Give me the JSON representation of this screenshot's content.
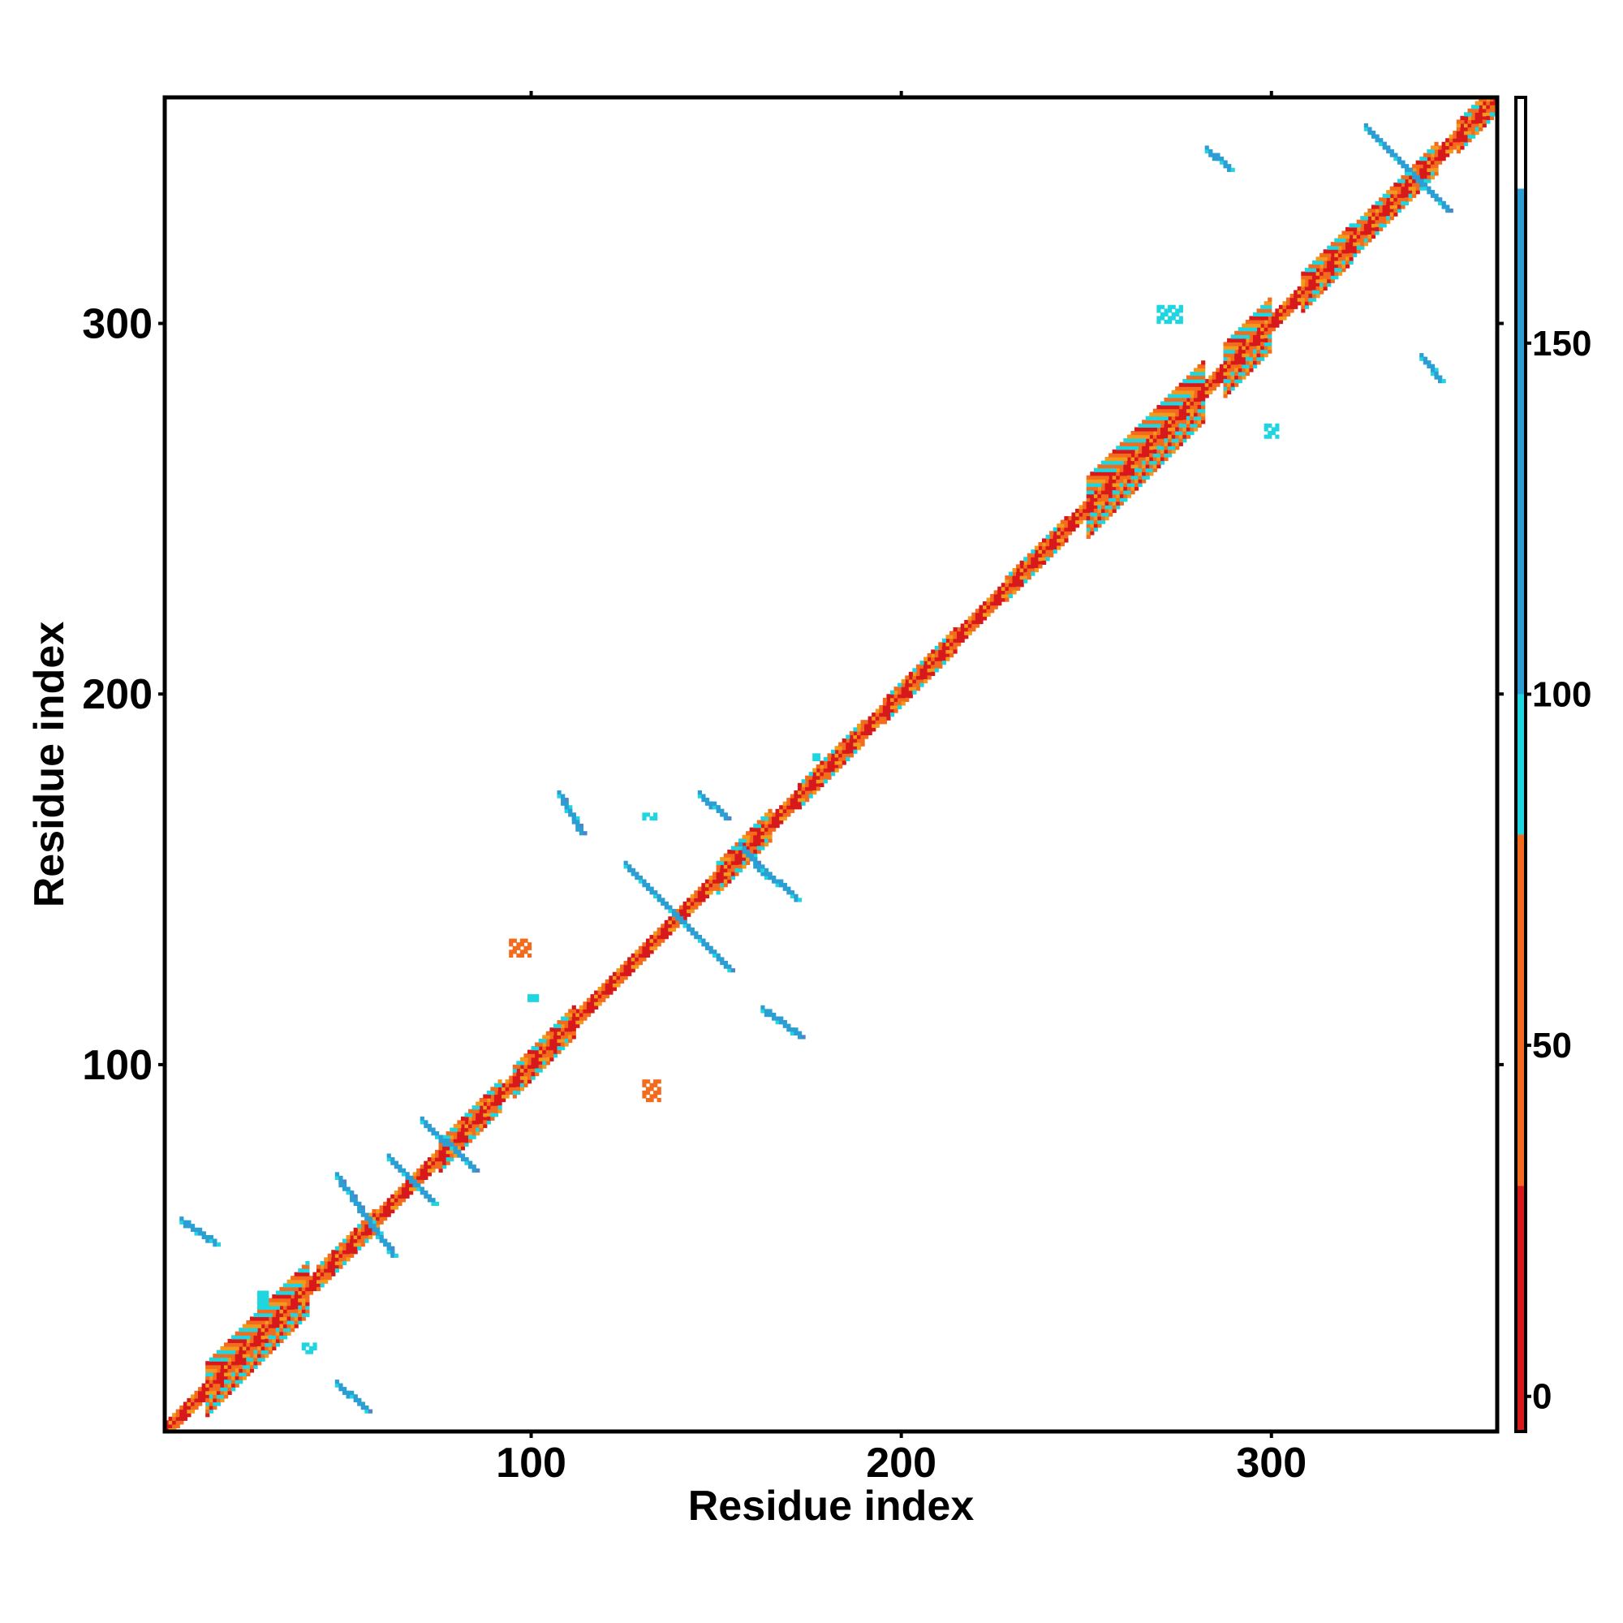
{
  "chart_data": {
    "type": "heatmap",
    "title": "",
    "xlabel": "Residue index",
    "ylabel": "Residue index",
    "xlim": [
      1,
      361
    ],
    "ylim": [
      1,
      361
    ],
    "xticks": [
      100,
      200,
      300
    ],
    "yticks": [
      100,
      200,
      300
    ],
    "grid": false,
    "colorbar": {
      "placement": "right",
      "range": [
        -5,
        185
      ],
      "ticks": [
        0,
        50,
        100,
        150
      ],
      "bands": [
        {
          "from": -5,
          "to": 30,
          "color": "#d7191c"
        },
        {
          "from": 30,
          "to": 80,
          "color": "#f36b1c"
        },
        {
          "from": 80,
          "to": 100,
          "color": "#1fd6e0"
        },
        {
          "from": 100,
          "to": 172,
          "color": "#2b9fd4"
        },
        {
          "from": 172,
          "to": 185,
          "color": "#ffffff"
        }
      ]
    },
    "cell_colors": {
      "red": "#d7191c",
      "orange": "#f36b1c",
      "amber": "#f39a1c",
      "cyan": "#1fd6e0",
      "blue": "#2b9fd4",
      "steel": "#4a86c8"
    },
    "diagonal": {
      "from": 1,
      "to": 361,
      "width": 2
    },
    "helix_bands": [
      {
        "from": 12,
        "to": 40,
        "width": 7
      },
      {
        "from": 42,
        "to": 58,
        "width": 3
      },
      {
        "from": 75,
        "to": 92,
        "width": 4
      },
      {
        "from": 95,
        "to": 112,
        "width": 4
      },
      {
        "from": 150,
        "to": 165,
        "width": 4
      },
      {
        "from": 172,
        "to": 190,
        "width": 3
      },
      {
        "from": 195,
        "to": 215,
        "width": 3
      },
      {
        "from": 228,
        "to": 245,
        "width": 3
      },
      {
        "from": 250,
        "to": 282,
        "width": 8
      },
      {
        "from": 287,
        "to": 300,
        "width": 7
      },
      {
        "from": 308,
        "to": 322,
        "width": 5
      },
      {
        "from": 322,
        "to": 345,
        "width": 4
      },
      {
        "from": 350,
        "to": 361,
        "width": 4
      }
    ],
    "strands": [
      {
        "x1": 47,
        "y1": 69,
        "x2": 62,
        "y2": 48
      },
      {
        "x1": 61,
        "y1": 74,
        "x2": 73,
        "y2": 62
      },
      {
        "x1": 70,
        "y1": 84,
        "x2": 84,
        "y2": 71
      },
      {
        "x1": 125,
        "y1": 153,
        "x2": 153,
        "y2": 125
      },
      {
        "x1": 156,
        "y1": 158,
        "x2": 163,
        "y2": 150
      },
      {
        "x1": 325,
        "y1": 352,
        "x2": 347,
        "y2": 330
      },
      {
        "x1": 5,
        "y1": 57,
        "x2": 14,
        "y2": 51
      },
      {
        "x1": 47,
        "y1": 13,
        "x2": 55,
        "y2": 6
      },
      {
        "x1": 107,
        "y1": 172,
        "x2": 113,
        "y2": 162
      },
      {
        "x1": 145,
        "y1": 172,
        "x2": 152,
        "y2": 166
      },
      {
        "x1": 162,
        "y1": 152,
        "x2": 171,
        "y2": 144
      },
      {
        "x1": 162,
        "y1": 114,
        "x2": 172,
        "y2": 107
      },
      {
        "x1": 282,
        "y1": 346,
        "x2": 288,
        "y2": 341
      },
      {
        "x1": 340,
        "y1": 290,
        "x2": 345,
        "y2": 284
      }
    ],
    "blobs": [
      {
        "x": 94,
        "y": 133,
        "w": 6,
        "h": 5,
        "color": "orange"
      },
      {
        "x": 130,
        "y": 95,
        "w": 5,
        "h": 6,
        "color": "orange"
      },
      {
        "x": 269,
        "y": 304,
        "w": 7,
        "h": 5,
        "color": "cyan"
      },
      {
        "x": 298,
        "y": 272,
        "w": 4,
        "h": 4,
        "color": "cyan"
      },
      {
        "x": 26,
        "y": 38,
        "w": 3,
        "h": 5,
        "color": "cyan"
      },
      {
        "x": 38,
        "y": 24,
        "w": 4,
        "h": 3,
        "color": "cyan"
      },
      {
        "x": 176,
        "y": 183,
        "w": 2,
        "h": 2,
        "color": "cyan"
      },
      {
        "x": 130,
        "y": 167,
        "w": 4,
        "h": 2,
        "color": "cyan"
      },
      {
        "x": 99,
        "y": 118,
        "w": 3,
        "h": 2,
        "color": "cyan"
      }
    ]
  }
}
